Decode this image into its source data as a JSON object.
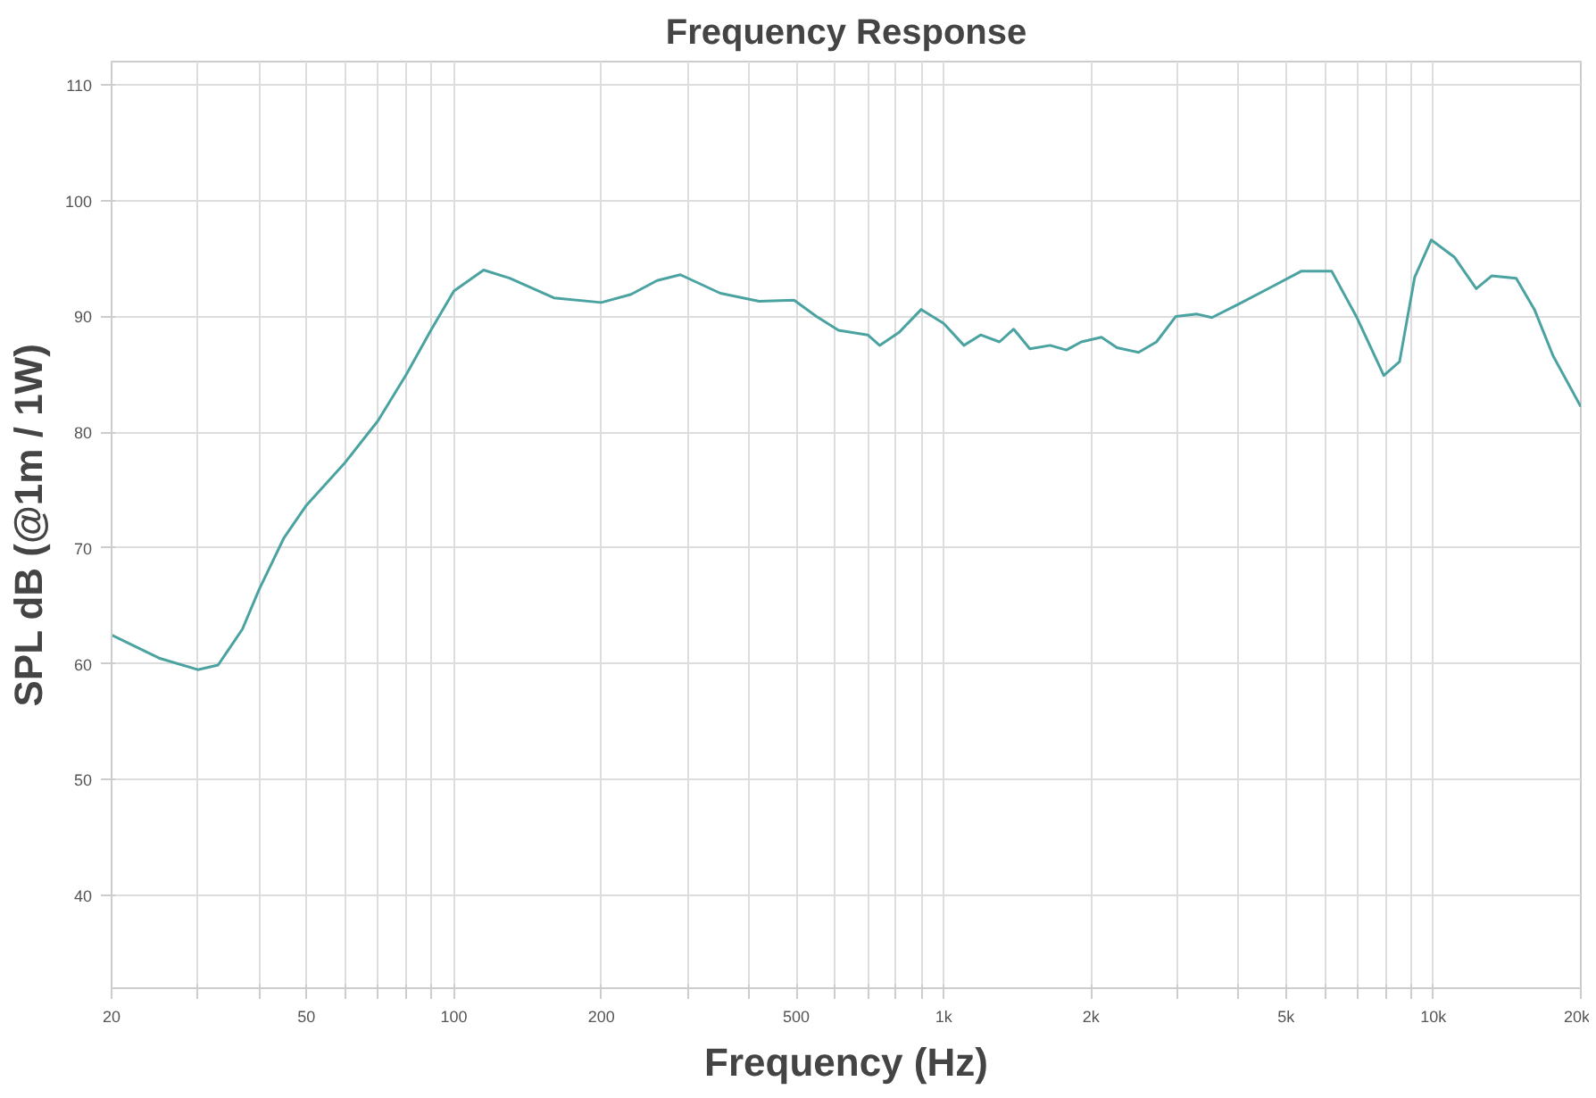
{
  "chart_data": {
    "type": "line",
    "title": "Frequency Response",
    "xlabel": "Frequency (Hz)",
    "ylabel": "SPL dB (@1m / 1W)",
    "log": "x",
    "grid": true,
    "marker": "none",
    "line_style": "solid",
    "xlim": [
      20,
      20000
    ],
    "ylim": [
      32,
      112
    ],
    "xticks": [
      20,
      {
        "value": 30,
        "label": null
      },
      {
        "value": 40,
        "label": null
      },
      50,
      {
        "value": 60,
        "label": null
      },
      {
        "value": 70,
        "label": null
      },
      {
        "value": 80,
        "label": null
      },
      {
        "value": 90,
        "label": null
      },
      100,
      200,
      {
        "value": 300,
        "label": null
      },
      {
        "value": 400,
        "label": null
      },
      500,
      {
        "value": 600,
        "label": null
      },
      {
        "value": 700,
        "label": null
      },
      {
        "value": 800,
        "label": null
      },
      {
        "value": 900,
        "label": null
      },
      {
        "value": 1000,
        "label": "1k"
      },
      {
        "value": 2000,
        "label": "2k"
      },
      {
        "value": 3000,
        "label": null
      },
      {
        "value": 4000,
        "label": null
      },
      {
        "value": 5000,
        "label": "5k"
      },
      {
        "value": 6000,
        "label": null
      },
      {
        "value": 7000,
        "label": null
      },
      {
        "value": 8000,
        "label": null
      },
      {
        "value": 9000,
        "label": null
      },
      {
        "value": 10000,
        "label": "10k"
      },
      {
        "value": 20000,
        "label": "20k"
      }
    ],
    "yticks": [
      40,
      50,
      60,
      70,
      80,
      90,
      100,
      110
    ],
    "series": [
      {
        "color": "#4aa3a0",
        "x": [
          20,
          25,
          30,
          33,
          37,
          40,
          45,
          50,
          60,
          70,
          80,
          90,
          100,
          115,
          130,
          160,
          200,
          230,
          260,
          290,
          350,
          420,
          495,
          550,
          610,
          700,
          740,
          810,
          900,
          1000,
          1100,
          1190,
          1300,
          1390,
          1500,
          1650,
          1780,
          1910,
          2100,
          2260,
          2500,
          2720,
          2980,
          3290,
          3530,
          4020,
          4650,
          5370,
          6200,
          6960,
          7920,
          8530,
          9160,
          9900,
          11050,
          12230,
          13150,
          14760,
          16080,
          17550,
          20000
        ],
        "values": [
          62.5,
          60.5,
          59.5,
          59.9,
          63,
          66.4,
          70.9,
          73.7,
          77.4,
          81,
          85,
          88.9,
          92.2,
          94,
          93.3,
          91.6,
          91.2,
          91.9,
          93.1,
          93.6,
          92,
          91.3,
          91.4,
          90,
          88.8,
          88.4,
          87.5,
          88.6,
          90.6,
          89.4,
          87.5,
          88.4,
          87.8,
          88.9,
          87.2,
          87.5,
          87.1,
          87.8,
          88.2,
          87.3,
          86.9,
          87.8,
          90,
          90.2,
          89.9,
          91.1,
          92.5,
          93.9,
          93.9,
          90,
          84.9,
          86.1,
          93.4,
          96.6,
          95.1,
          92.4,
          93.5,
          93.3,
          90.6,
          86.6,
          82.2
        ]
      }
    ]
  }
}
